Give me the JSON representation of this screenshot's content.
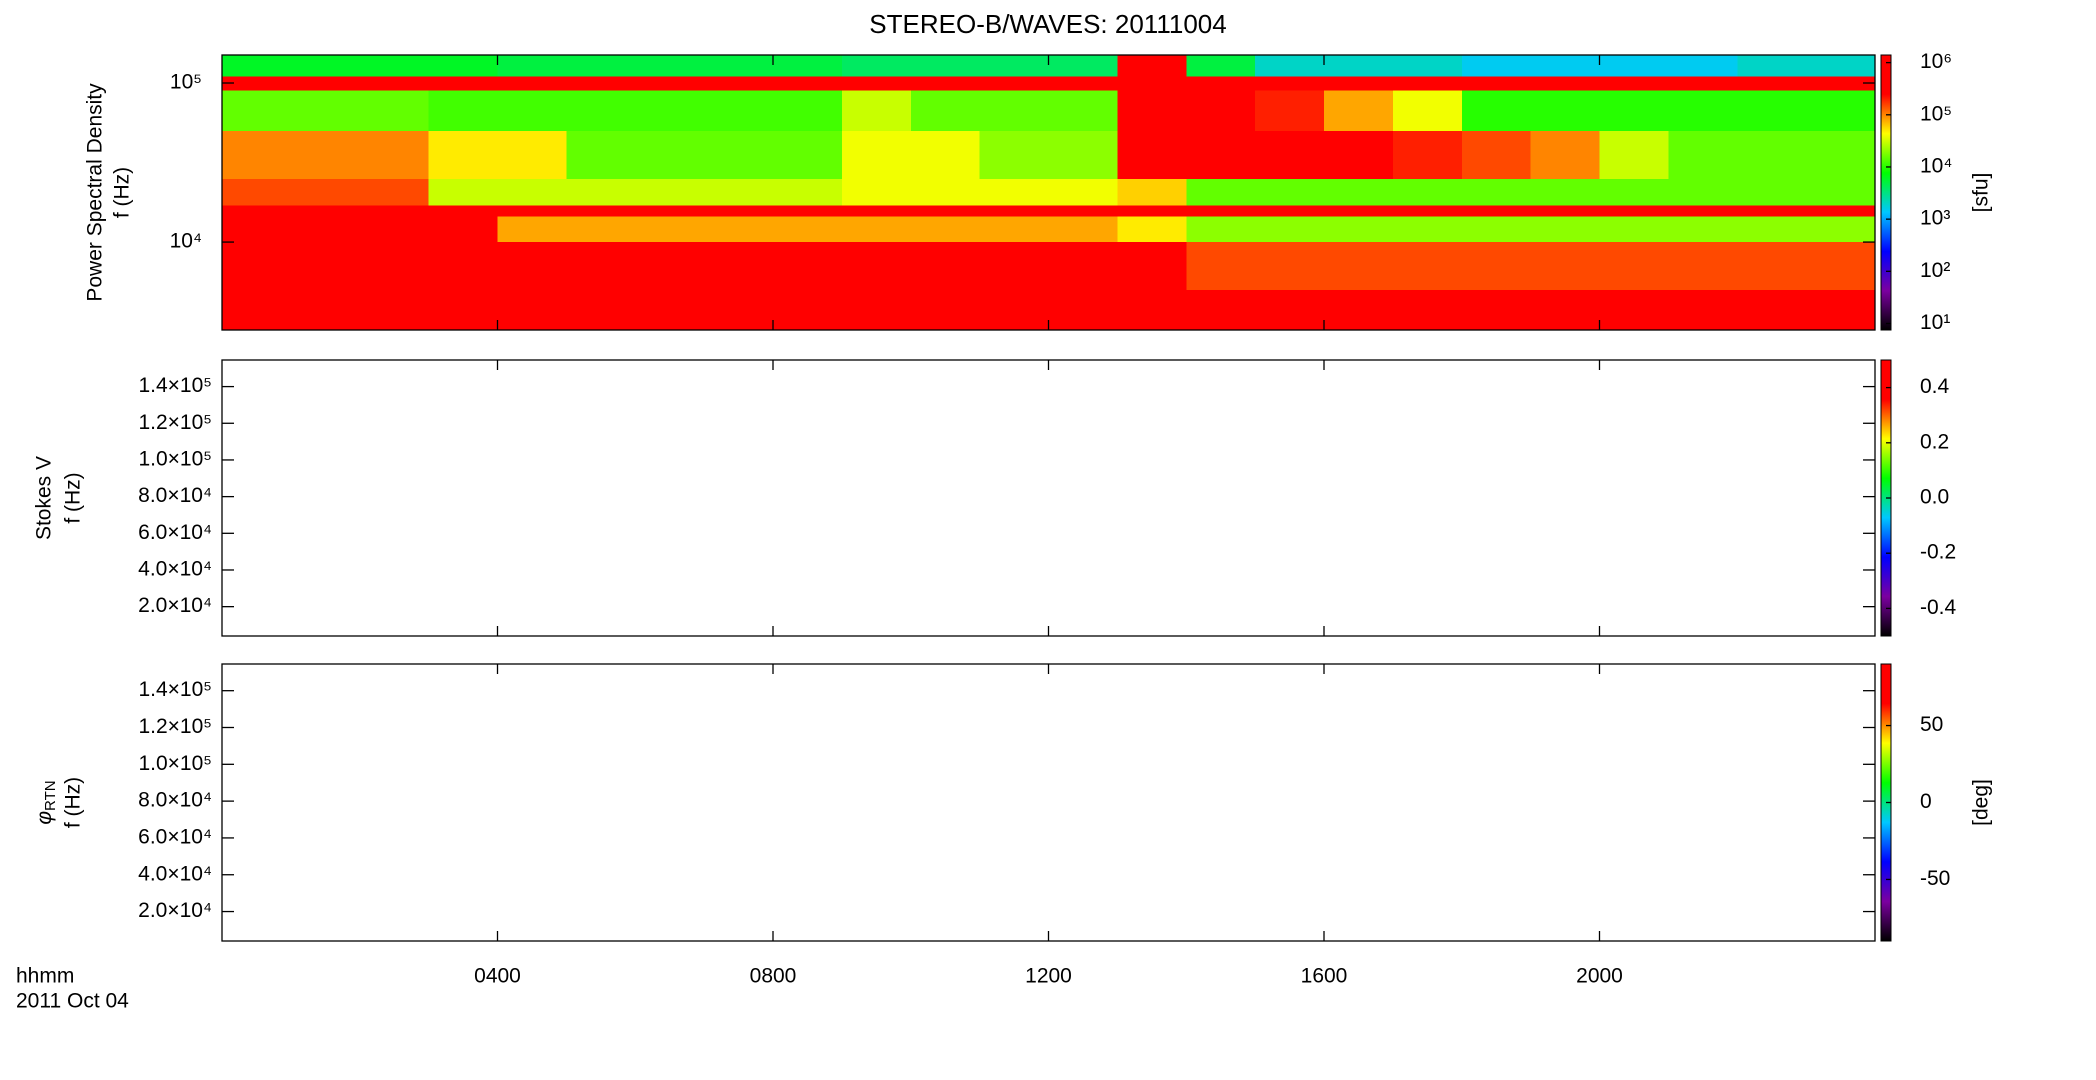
{
  "title": "STEREO-B/WAVES: 20111004",
  "x_axis": {
    "label": "hhmm",
    "date": "2011 Oct 04",
    "xlim": [
      0,
      24
    ],
    "xticks": [
      {
        "value": 4,
        "label": "0400"
      },
      {
        "value": 8,
        "label": "0800"
      },
      {
        "value": 12,
        "label": "1200"
      },
      {
        "value": 16,
        "label": "1600"
      },
      {
        "value": 20,
        "label": "2000"
      }
    ]
  },
  "colormap": [
    "#000000",
    "#7b00a0",
    "#0000ff",
    "#00c8ff",
    "#00ff00",
    "#ffff00",
    "#ff0000",
    "#ff0000"
  ],
  "chart_data": [
    {
      "type": "heatmap",
      "ylabel": [
        "Power Spectral Density",
        "f (Hz)"
      ],
      "ylog": true,
      "ylim": [
        2800,
        150000
      ],
      "yticks": [
        {
          "value": 10000,
          "label": "10⁴"
        },
        {
          "value": 100000,
          "label": "10⁵"
        }
      ],
      "xbins": [
        0,
        1,
        2,
        3,
        4,
        5,
        6,
        7,
        8,
        9,
        10,
        11,
        12,
        13,
        14,
        15,
        16,
        17,
        18,
        19,
        20,
        21,
        22,
        23,
        24
      ],
      "ybins": [
        150000,
        110000,
        90000,
        50000,
        25000,
        17000,
        14500,
        10000,
        5000,
        2800
      ],
      "z": [
        [
          6000,
          6000,
          6000,
          6000,
          5000,
          5000,
          5000,
          5000,
          5000,
          4000,
          4000,
          4000,
          4000,
          300000,
          5000,
          2000,
          2000,
          2000,
          1500,
          1500,
          1500,
          1500,
          2000,
          2000
        ],
        [
          800000,
          800000,
          800000,
          800000,
          800000,
          800000,
          800000,
          800000,
          800000,
          800000,
          800000,
          800000,
          800000,
          1000000,
          800000,
          800000,
          800000,
          800000,
          800000,
          800000,
          800000,
          800000,
          800000,
          800000
        ],
        [
          15000,
          15000,
          15000,
          12000,
          12000,
          12000,
          12000,
          12000,
          12000,
          30000,
          15000,
          15000,
          15000,
          1000000,
          600000,
          200000,
          80000,
          40000,
          10000,
          10000,
          10000,
          10000,
          10000,
          10000
        ],
        [
          100000,
          100000,
          100000,
          50000,
          50000,
          15000,
          15000,
          15000,
          15000,
          40000,
          40000,
          20000,
          20000,
          1000000,
          800000,
          500000,
          300000,
          200000,
          150000,
          100000,
          30000,
          15000,
          15000,
          15000
        ],
        [
          150000,
          150000,
          150000,
          30000,
          30000,
          30000,
          30000,
          30000,
          30000,
          40000,
          40000,
          40000,
          40000,
          60000,
          15000,
          15000,
          15000,
          15000,
          15000,
          15000,
          15000,
          15000,
          15000,
          15000
        ],
        [
          1000000,
          1000000,
          1000000,
          1000000,
          1000000,
          1000000,
          1000000,
          1000000,
          1000000,
          1000000,
          1000000,
          1000000,
          1000000,
          1000000,
          1000000,
          1000000,
          1000000,
          1000000,
          1000000,
          1000000,
          1000000,
          1000000,
          1000000,
          1000000
        ],
        [
          400000,
          400000,
          400000,
          400000,
          80000,
          80000,
          80000,
          80000,
          80000,
          80000,
          80000,
          80000,
          80000,
          50000,
          20000,
          20000,
          20000,
          20000,
          20000,
          20000,
          20000,
          20000,
          20000,
          20000
        ],
        [
          1000000,
          1000000,
          1000000,
          1000000,
          600000,
          600000,
          600000,
          600000,
          600000,
          600000,
          600000,
          600000,
          600000,
          300000,
          150000,
          150000,
          150000,
          150000,
          150000,
          150000,
          150000,
          150000,
          150000,
          150000
        ],
        [
          1000000,
          1000000,
          1000000,
          1000000,
          1000000,
          1000000,
          1000000,
          1000000,
          1000000,
          1000000,
          1000000,
          1000000,
          1000000,
          800000,
          400000,
          400000,
          400000,
          400000,
          400000,
          400000,
          400000,
          400000,
          400000,
          400000
        ]
      ],
      "colorbar": {
        "label": "[sfu]",
        "log": true,
        "clim": [
          7.5,
          1400000
        ],
        "cticks": [
          {
            "value": 10,
            "label": "10¹"
          },
          {
            "value": 100,
            "label": "10²"
          },
          {
            "value": 1000,
            "label": "10³"
          },
          {
            "value": 10000,
            "label": "10⁴"
          },
          {
            "value": 100000,
            "label": "10⁵"
          },
          {
            "value": 1000000,
            "label": "10⁶"
          }
        ]
      }
    },
    {
      "type": "heatmap",
      "ylabel": [
        "Stokes V",
        "f (Hz)"
      ],
      "ylog": false,
      "ylim": [
        4000,
        154500
      ],
      "yticks": [
        {
          "value": 20000,
          "label": "2.0×10⁴"
        },
        {
          "value": 40000,
          "label": "4.0×10⁴"
        },
        {
          "value": 60000,
          "label": "6.0×10⁴"
        },
        {
          "value": 80000,
          "label": "8.0×10⁴"
        },
        {
          "value": 100000,
          "label": "1.0×10⁵"
        },
        {
          "value": 120000,
          "label": "1.2×10⁵"
        },
        {
          "value": 140000,
          "label": "1.4×10⁵"
        }
      ],
      "colorbar": {
        "log": false,
        "clim": [
          -0.5,
          0.5
        ],
        "cticks": [
          -0.4,
          -0.2,
          {
            "value": 0,
            "label": "0.0"
          },
          0.2,
          0.4
        ]
      }
    },
    {
      "type": "heatmap",
      "ylabel_symbol": "φ",
      "ylabel_subscript": "RTN",
      "ylabel": [
        "f (Hz)"
      ],
      "ylog": false,
      "ylim": [
        4000,
        154500
      ],
      "yticks": [
        {
          "value": 20000,
          "label": "2.0×10⁴"
        },
        {
          "value": 40000,
          "label": "4.0×10⁴"
        },
        {
          "value": 60000,
          "label": "6.0×10⁴"
        },
        {
          "value": 80000,
          "label": "8.0×10⁴"
        },
        {
          "value": 100000,
          "label": "1.0×10⁵"
        },
        {
          "value": 120000,
          "label": "1.2×10⁵"
        },
        {
          "value": 140000,
          "label": "1.4×10⁵"
        }
      ],
      "colorbar": {
        "label": "[deg]",
        "log": false,
        "clim": [
          -90,
          90
        ],
        "cticks": [
          -50,
          0,
          50
        ]
      }
    }
  ]
}
